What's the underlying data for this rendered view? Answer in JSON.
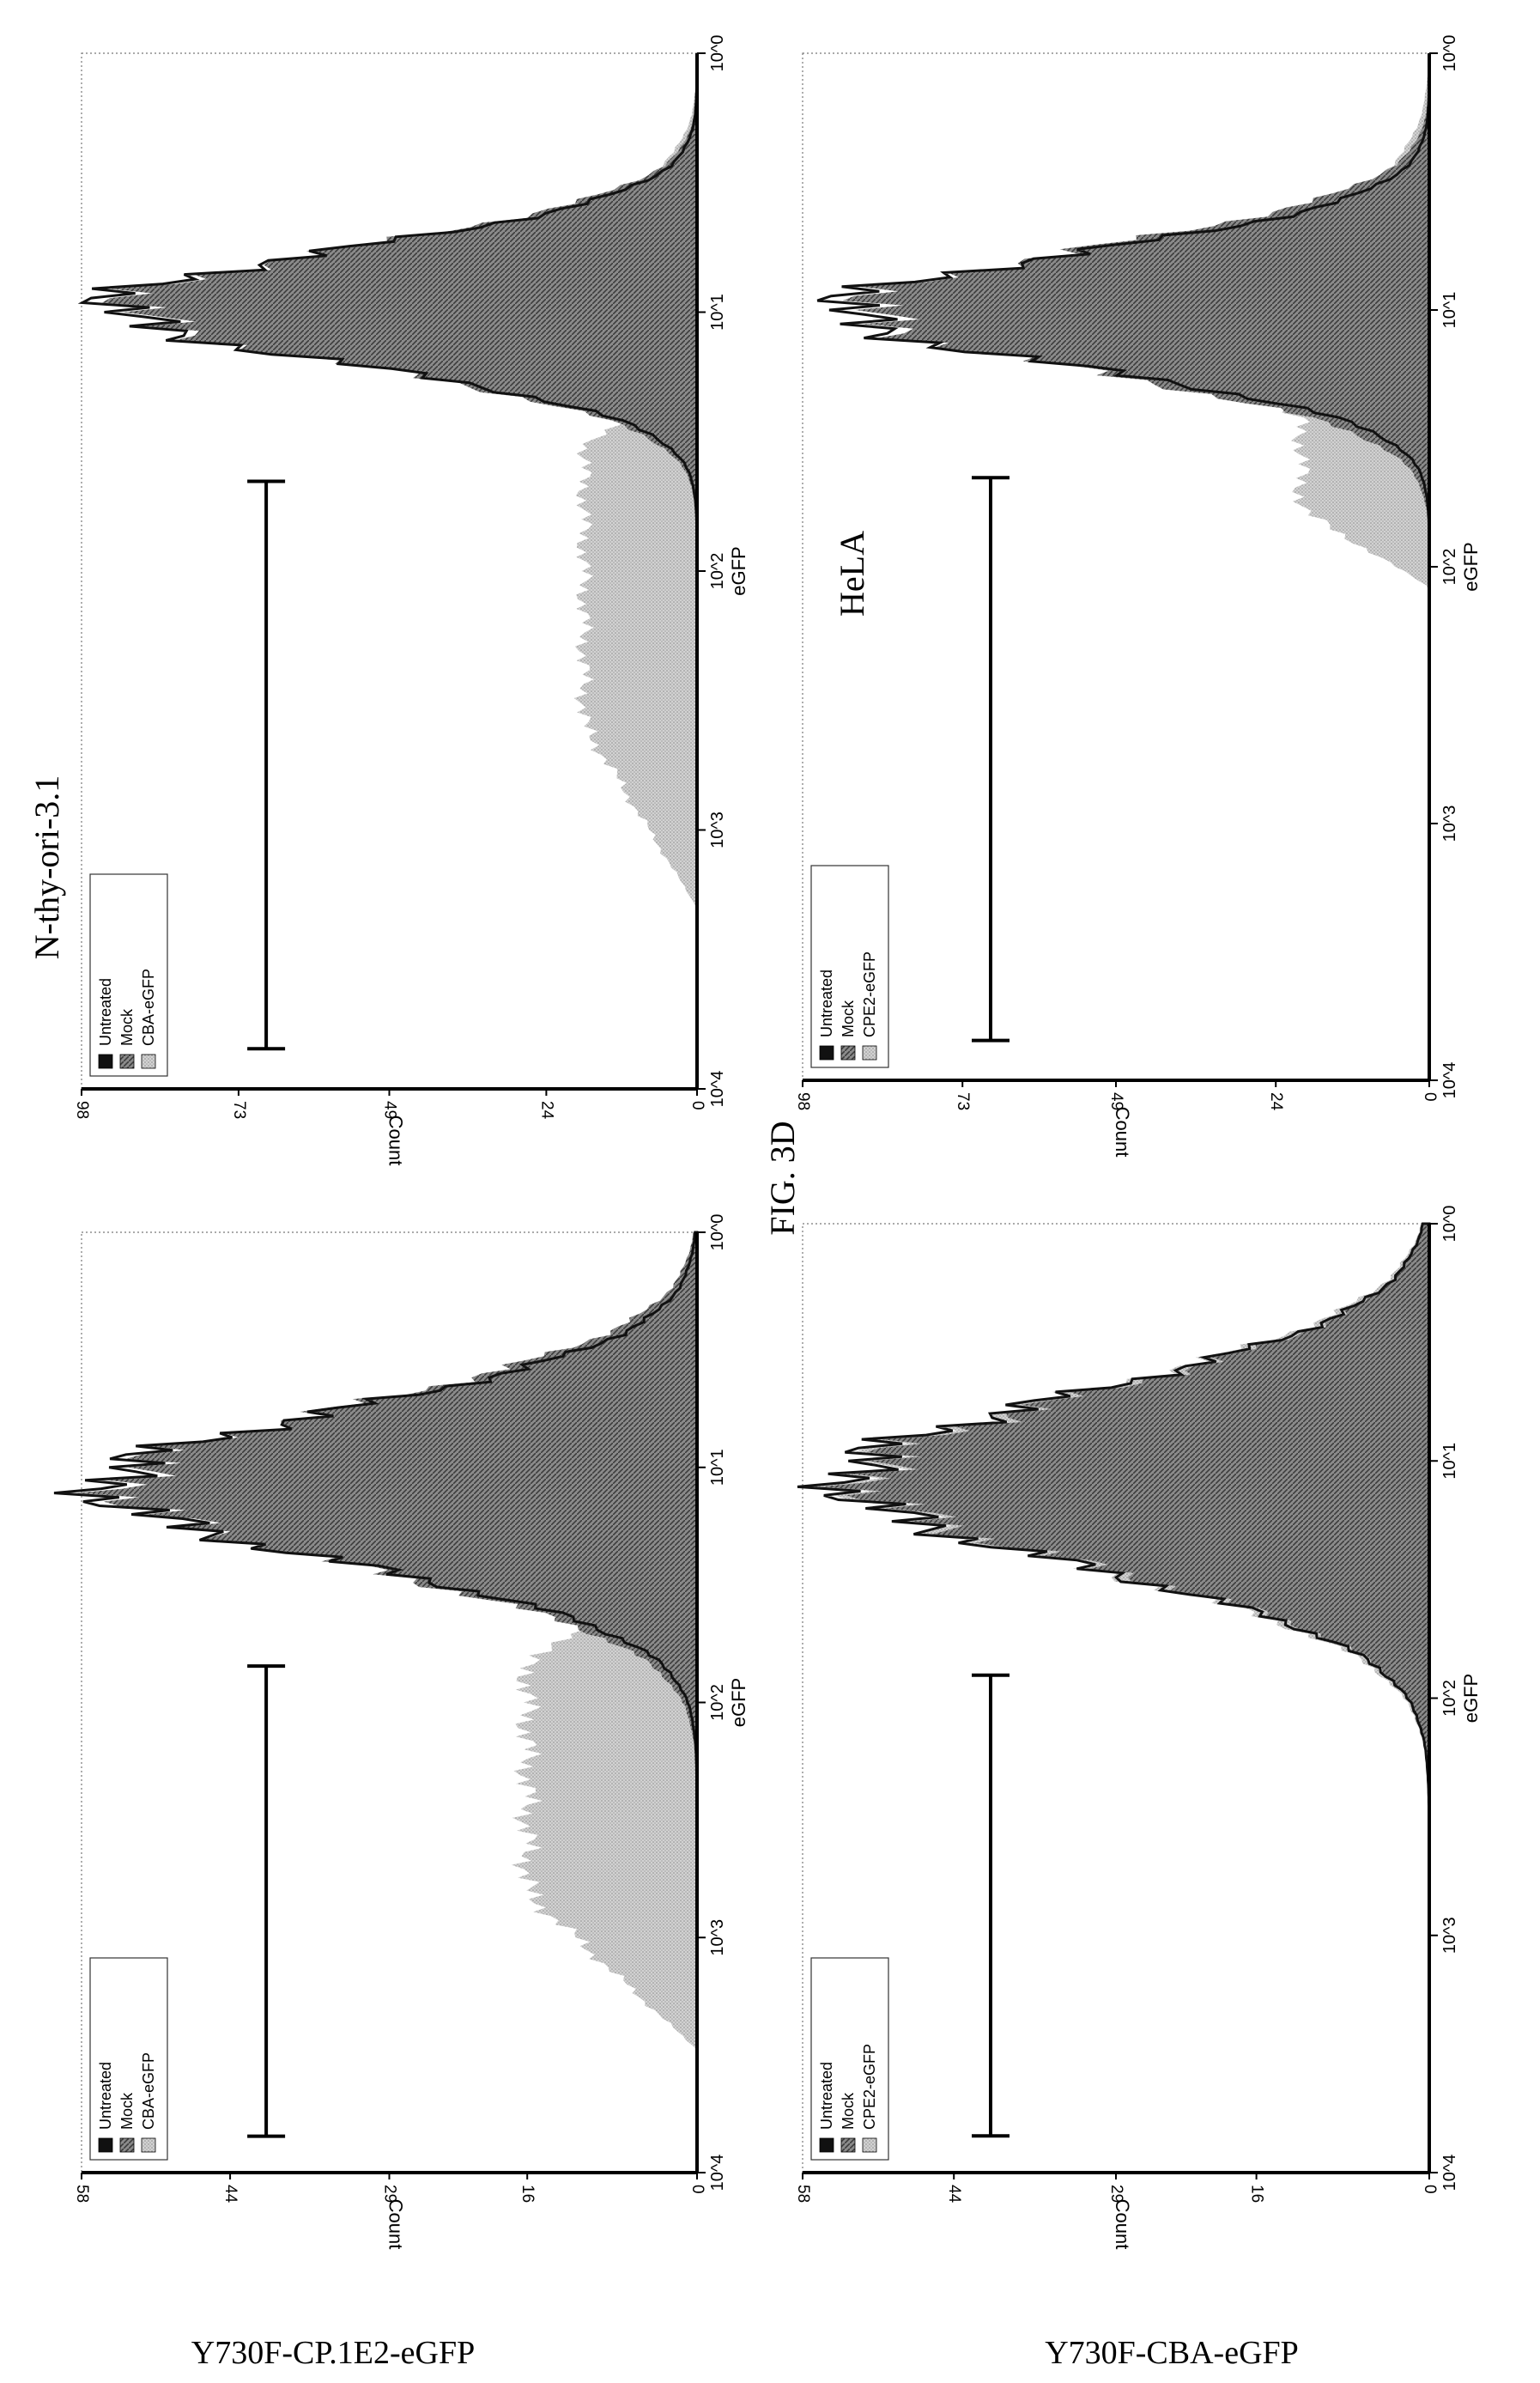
{
  "figure_label": "FIG. 3D",
  "column_titles": {
    "left": "N-thy-ori-3.1",
    "right": "HeLA"
  },
  "row_titles": {
    "top": "Y730F-CP.1E2-eGFP",
    "bottom": "Y730F-CBA-eGFP"
  },
  "colors": {
    "untreated": "#111111",
    "mock": "#6f6f6f",
    "treated": "#c6c6c6",
    "axis": "#000000",
    "page": "#ffffff"
  },
  "chart_data": [
    {
      "id": "top-left",
      "type": "area",
      "xscale": "log",
      "xlabel": "eGFP",
      "ylabel": "Count",
      "xlim": [
        1,
        10000
      ],
      "ylim": [
        0,
        58
      ],
      "x_ticks": [
        "10^0",
        "10^1",
        "10^2",
        "10^3",
        "10^4"
      ],
      "y_ticks": [
        "0",
        "16",
        "29",
        "44",
        "58"
      ],
      "legend": [
        "Untreated",
        "Mock",
        "CBA-eGFP"
      ],
      "legend_position": "top-right",
      "gate": [
        70,
        7000
      ],
      "series": [
        {
          "name": "Untreated",
          "peak_x": 12,
          "peak_y": 56,
          "width": 0.32,
          "floor_y": 0
        },
        {
          "name": "Mock",
          "peak_x": 12,
          "peak_y": 54,
          "width": 0.34,
          "floor_y": 0
        },
        {
          "name": "CBA-eGFP",
          "peak_x": 12,
          "peak_y": 14,
          "width": 0.35,
          "floor_y": 0,
          "tail": {
            "level": 16,
            "from_x": 30,
            "to_x": 3000
          }
        }
      ]
    },
    {
      "id": "top-right",
      "type": "area",
      "xscale": "log",
      "xlabel": "eGFP",
      "ylabel": "Count",
      "xlim": [
        1,
        10000
      ],
      "ylim": [
        0,
        98
      ],
      "x_ticks": [
        "10^0",
        "10^1",
        "10^2",
        "10^3",
        "10^4"
      ],
      "y_ticks": [
        "0",
        "24",
        "49",
        "73",
        "98"
      ],
      "legend": [
        "Untreated",
        "Mock",
        "CBA-eGFP"
      ],
      "legend_position": "top-right",
      "gate": [
        45,
        7000
      ],
      "series": [
        {
          "name": "Untreated",
          "peak_x": 9.5,
          "peak_y": 93,
          "width": 0.22,
          "floor_y": 0
        },
        {
          "name": "Mock",
          "peak_x": 9.5,
          "peak_y": 90,
          "width": 0.23,
          "floor_y": 0
        },
        {
          "name": "CBA-eGFP",
          "peak_x": 8.5,
          "peak_y": 42,
          "width": 0.25,
          "floor_y": 0,
          "tail": {
            "level": 18,
            "from_x": 15,
            "to_x": 2000
          }
        }
      ]
    },
    {
      "id": "bottom-left",
      "type": "area",
      "xscale": "log",
      "xlabel": "eGFP",
      "ylabel": "Count",
      "xlim": [
        1,
        10000
      ],
      "ylim": [
        0,
        58
      ],
      "x_ticks": [
        "10^0",
        "10^1",
        "10^2",
        "10^3",
        "10^4"
      ],
      "y_ticks": [
        "0",
        "16",
        "29",
        "44",
        "58"
      ],
      "legend": [
        "Untreated",
        "Mock",
        "CPE2-eGFP"
      ],
      "legend_position": "top-right",
      "gate": [
        80,
        7000
      ],
      "series": [
        {
          "name": "Untreated",
          "peak_x": 12,
          "peak_y": 54,
          "width": 0.36,
          "floor_y": 0
        },
        {
          "name": "Mock",
          "peak_x": 12,
          "peak_y": 52,
          "width": 0.36,
          "floor_y": 0
        },
        {
          "name": "CPE2-eGFP",
          "peak_x": 12,
          "peak_y": 53,
          "width": 0.37,
          "floor_y": 0
        }
      ]
    },
    {
      "id": "bottom-right",
      "type": "area",
      "xscale": "log",
      "xlabel": "eGFP",
      "ylabel": "Count",
      "xlim": [
        1,
        10000
      ],
      "ylim": [
        0,
        98
      ],
      "x_ticks": [
        "10^0",
        "10^1",
        "10^2",
        "10^3",
        "10^4"
      ],
      "y_ticks": [
        "0",
        "24",
        "49",
        "73",
        "98"
      ],
      "legend": [
        "Untreated",
        "Mock",
        "CPE2-eGFP"
      ],
      "legend_position": "top-right",
      "gate": [
        45,
        7000
      ],
      "series": [
        {
          "name": "Untreated",
          "peak_x": 10,
          "peak_y": 92,
          "width": 0.22,
          "floor_y": 0
        },
        {
          "name": "Mock",
          "peak_x": 10,
          "peak_y": 88,
          "width": 0.24,
          "floor_y": 0
        },
        {
          "name": "CPE2-eGFP",
          "peak_x": 11,
          "peak_y": 46,
          "width": 0.3,
          "floor_y": 0,
          "tail": {
            "level": 20,
            "from_x": 15,
            "to_x": 120
          }
        }
      ]
    }
  ]
}
